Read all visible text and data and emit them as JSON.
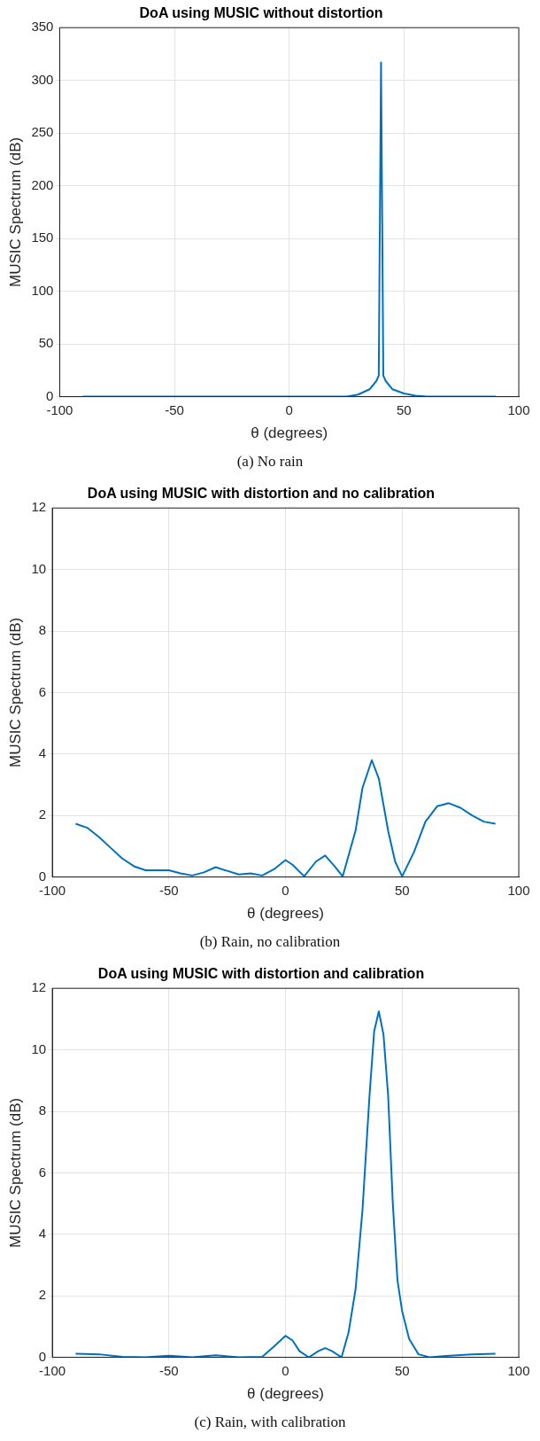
{
  "chart_data": [
    {
      "type": "line",
      "title": "DoA using MUSIC without distortion",
      "xlabel": "θ (degrees)",
      "ylabel": "MUSIC Spectrum (dB)",
      "annotations": [
        "(a) No rain"
      ],
      "x": [
        -90,
        -70,
        -50,
        -30,
        -10,
        10,
        20,
        25,
        30,
        35,
        38,
        39,
        40,
        41,
        42,
        45,
        50,
        55,
        60,
        70,
        90
      ],
      "series": [
        {
          "color": "#0072bd",
          "values": [
            0,
            0,
            0,
            0,
            0,
            0,
            0,
            0,
            2,
            7,
            15,
            20,
            317,
            20,
            15,
            7,
            3,
            1,
            0,
            0,
            0
          ]
        }
      ],
      "xlim": [
        -100,
        100
      ],
      "xticks": [
        -100,
        -50,
        0,
        50,
        100
      ],
      "ylim": [
        0,
        350
      ],
      "yticks": [
        0,
        50,
        100,
        150,
        200,
        250,
        300,
        350
      ],
      "grid": true,
      "marker": "none",
      "line_style": "solid"
    },
    {
      "type": "line",
      "title": "DoA using MUSIC with distortion and no calibration",
      "xlabel": "θ (degrees)",
      "ylabel": "MUSIC Spectrum (dB)",
      "annotations": [
        "(b) Rain, no calibration"
      ],
      "x": [
        -90,
        -85,
        -80,
        -75,
        -70,
        -65,
        -60,
        -55,
        -50,
        -45,
        -40,
        -35,
        -30,
        -25,
        -20,
        -15,
        -10,
        -5,
        0,
        3,
        8,
        13,
        17,
        21,
        24.5,
        30,
        33,
        37,
        40,
        44,
        47,
        50,
        55,
        60,
        65,
        70,
        75,
        80,
        85,
        90
      ],
      "series": [
        {
          "color": "#0072bd",
          "values": [
            1.73,
            1.6,
            1.3,
            0.95,
            0.6,
            0.35,
            0.22,
            0.22,
            0.22,
            0.12,
            0.05,
            0.15,
            0.32,
            0.2,
            0.08,
            0.12,
            0.05,
            0.25,
            0.55,
            0.4,
            0.02,
            0.5,
            0.7,
            0.35,
            0.02,
            1.5,
            2.9,
            3.8,
            3.2,
            1.5,
            0.5,
            0.02,
            0.8,
            1.8,
            2.3,
            2.4,
            2.25,
            2.0,
            1.8,
            1.73
          ]
        }
      ],
      "xlim": [
        -100,
        100
      ],
      "xticks": [
        -100,
        -50,
        0,
        50,
        100
      ],
      "ylim": [
        0,
        12
      ],
      "yticks": [
        0,
        2,
        4,
        6,
        8,
        10,
        12
      ],
      "grid": true,
      "marker": "none",
      "line_style": "solid"
    },
    {
      "type": "line",
      "title": "DoA using MUSIC with distortion and calibration",
      "xlabel": "θ (degrees)",
      "ylabel": "MUSIC Spectrum (dB)",
      "annotations": [
        "(c) Rain, with calibration"
      ],
      "x": [
        -90,
        -80,
        -70,
        -60,
        -50,
        -40,
        -30,
        -20,
        -10,
        -5,
        0,
        3,
        6,
        10,
        14,
        17,
        20,
        24,
        27,
        30,
        33,
        36,
        38,
        40,
        42,
        44,
        46,
        48,
        50,
        53,
        57,
        62,
        70,
        80,
        90
      ],
      "series": [
        {
          "color": "#0072bd",
          "values": [
            0.12,
            0.1,
            0.02,
            0,
            0.05,
            0,
            0.07,
            0,
            0.02,
            0.35,
            0.7,
            0.55,
            0.2,
            0,
            0.2,
            0.3,
            0.2,
            0,
            0.8,
            2.2,
            4.8,
            8.5,
            10.6,
            11.25,
            10.5,
            8.5,
            5,
            2.5,
            1.5,
            0.6,
            0.1,
            0,
            0.05,
            0.1,
            0.12
          ]
        }
      ],
      "xlim": [
        -100,
        100
      ],
      "xticks": [
        -100,
        -50,
        0,
        50,
        100
      ],
      "ylim": [
        0,
        12
      ],
      "yticks": [
        0,
        2,
        4,
        6,
        8,
        10,
        12
      ],
      "grid": true,
      "marker": "none",
      "line_style": "solid"
    }
  ]
}
